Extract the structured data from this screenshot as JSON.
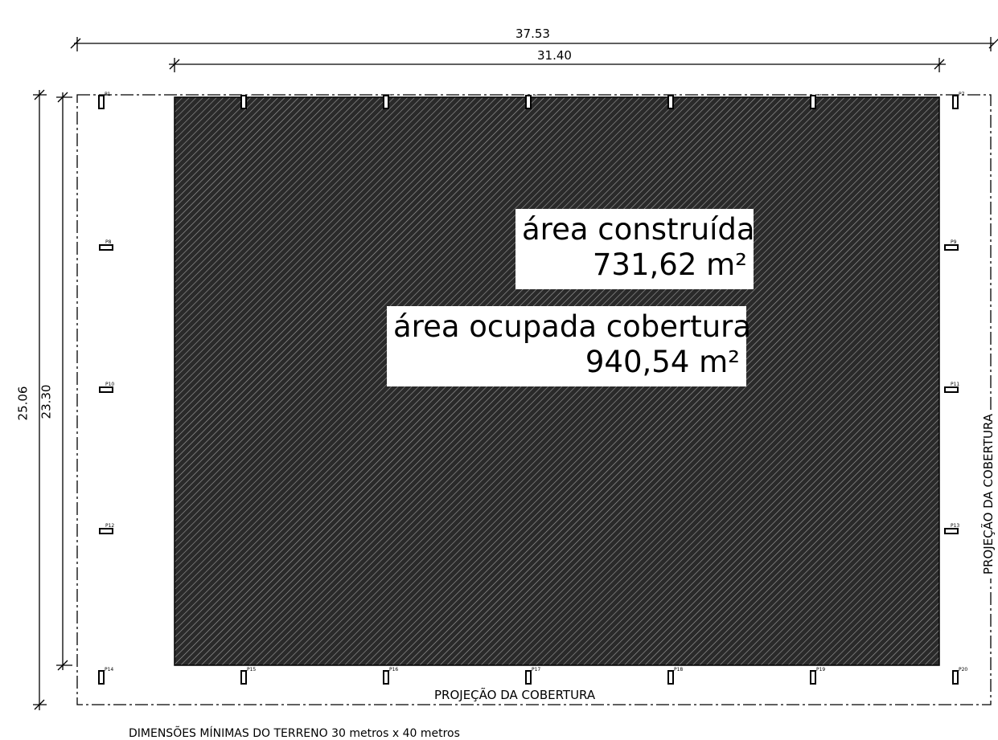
{
  "dimensions": {
    "overall_width": "37.53",
    "inner_width": "31.40",
    "overall_height": "25.06",
    "inner_height": "23.30"
  },
  "areas": {
    "built_label": "área construída",
    "built_value": "731,62 m²",
    "covered_label": "área ocupada cobertura",
    "covered_value": "940,54 m²"
  },
  "labels": {
    "projection_bottom": "PROJEÇÃO DA COBERTURA",
    "projection_right": "PROJEÇÃO DA COBERTURA",
    "land_note": "DIMENSÕES MÍNIMAS DO TERRENO 30 metros x 40 metros"
  },
  "pillars": [
    "P1",
    "P2",
    "P3",
    "P4",
    "P5",
    "P6",
    "P7",
    "P8",
    "P9",
    "P10",
    "P11",
    "P12",
    "P13",
    "P14",
    "P15",
    "P16",
    "P17",
    "P18",
    "P19",
    "P20"
  ],
  "colors": {
    "hatch_fill": "#2a2a2a",
    "hatch_line": "#9a9a9a",
    "line": "#000000"
  }
}
